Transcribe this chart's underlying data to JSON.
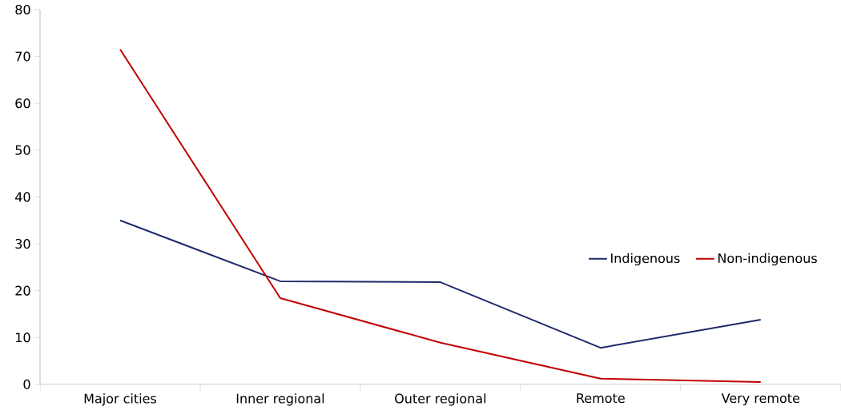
{
  "chart_data": {
    "type": "line",
    "categories": [
      "Major cities",
      "Inner regional",
      "Outer regional",
      "Remote",
      "Very remote"
    ],
    "series": [
      {
        "name": "Indigenous",
        "color": "#1f2a6e",
        "values": [
          35,
          22,
          21.8,
          7.8,
          13.8
        ]
      },
      {
        "name": "Non-indigenous",
        "color": "#c00000",
        "values": [
          71.5,
          18.4,
          8.9,
          1.2,
          0.5
        ]
      }
    ],
    "ylim": [
      0,
      80
    ],
    "yticks": [
      0,
      10,
      20,
      30,
      40,
      50,
      60,
      70,
      80
    ],
    "grid": false,
    "legend": "right",
    "marker": "none",
    "line_style": "solid"
  }
}
